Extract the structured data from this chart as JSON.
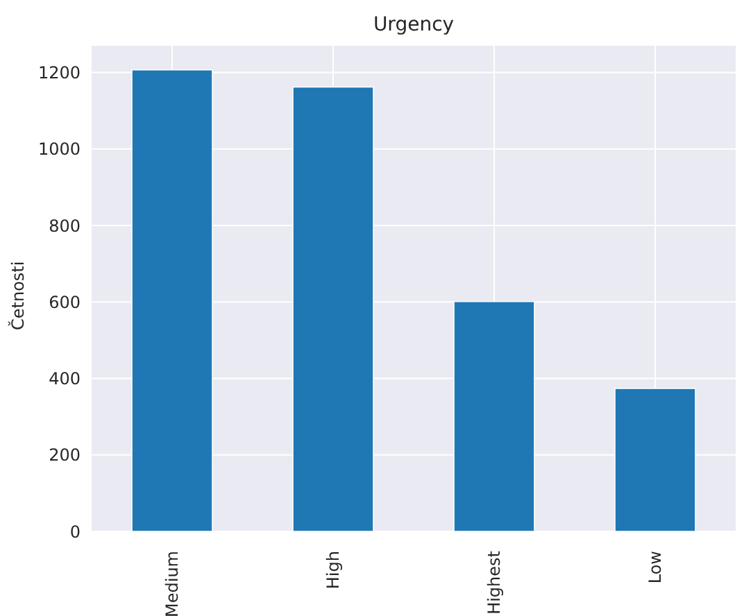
{
  "chart_data": {
    "type": "bar",
    "title": "Urgency",
    "ylabel": "Četnosti",
    "categories": [
      "Medium",
      "High",
      "Highest",
      "Low"
    ],
    "values": [
      1207,
      1162,
      601,
      374
    ],
    "color": "#1f77b4",
    "ylim": [
      0,
      1270
    ],
    "yticks": [
      0,
      200,
      400,
      600,
      800,
      1000,
      1200
    ],
    "grid": true
  }
}
